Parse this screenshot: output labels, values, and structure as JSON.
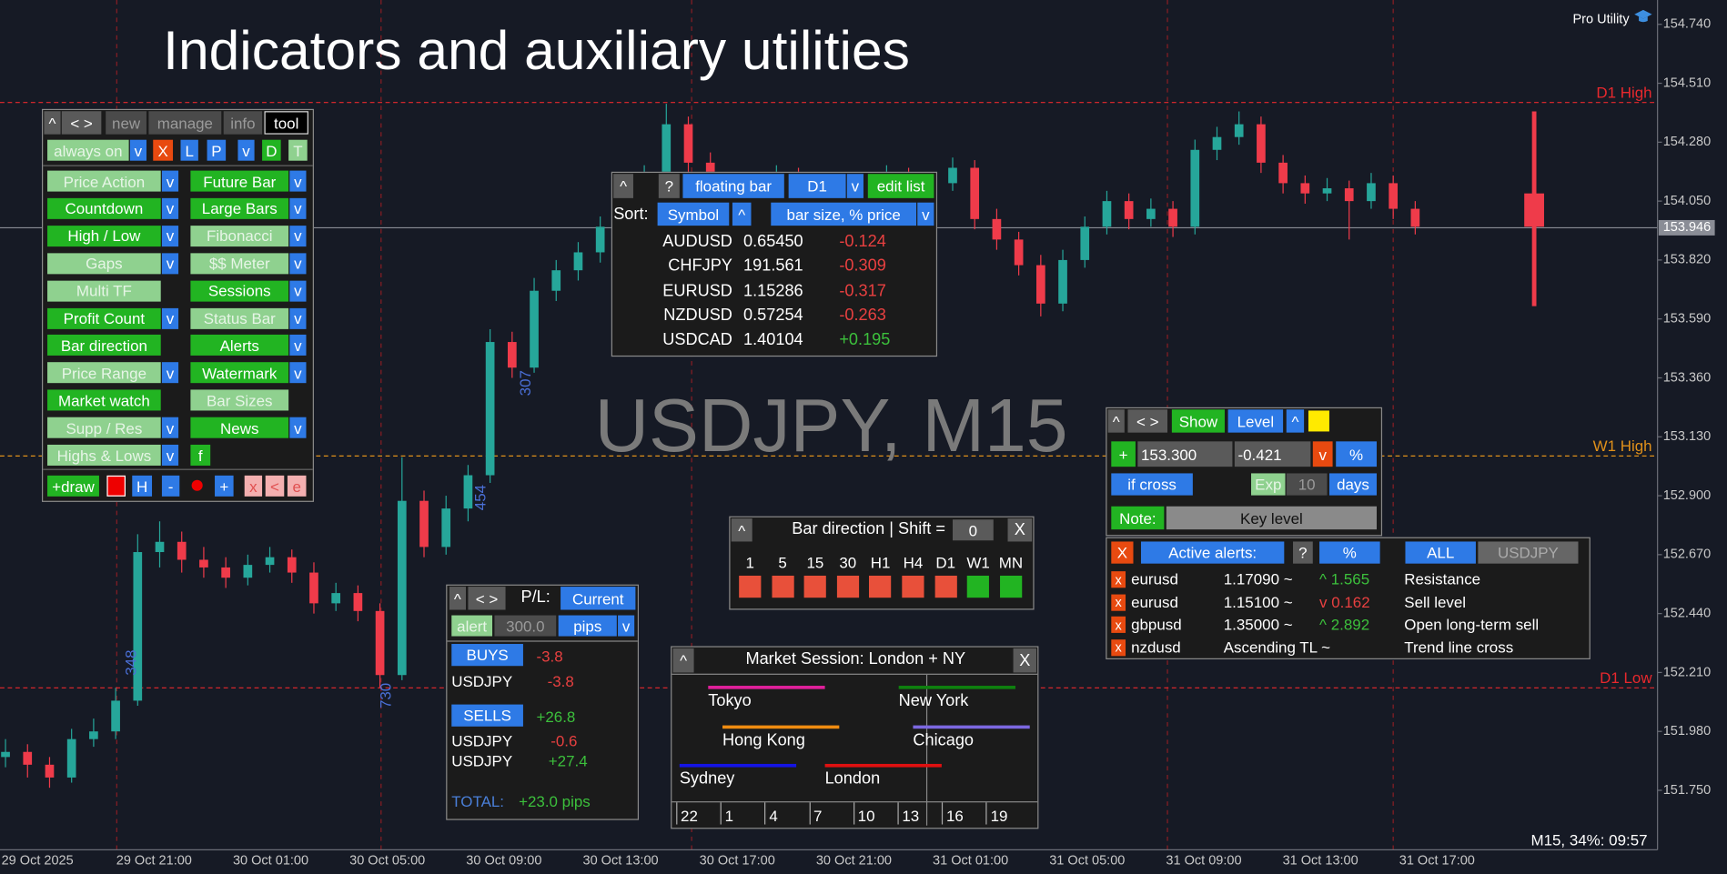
{
  "header": {
    "title": "Indicators and auxiliary utilities",
    "branding": "Pro Utility",
    "watermark": "USDJPY, M15",
    "status": "M15, 34%: 09:57"
  },
  "chart_data": {
    "type": "candlestick",
    "up_color": "#26a69a",
    "down_color": "#ef3b4a",
    "ylim": [
      151.518,
      154.835
    ],
    "yticks": [
      {
        "value": 154.74,
        "label": "154.740"
      },
      {
        "value": 154.51,
        "label": "154.510"
      },
      {
        "value": 154.28,
        "label": "154.280"
      },
      {
        "value": 154.05,
        "label": "154.050"
      },
      {
        "value": 153.82,
        "label": "153.820"
      },
      {
        "value": 153.59,
        "label": "153.590"
      },
      {
        "value": 153.36,
        "label": "153.360"
      },
      {
        "value": 153.13,
        "label": "153.130"
      },
      {
        "value": 152.9,
        "label": "152.900"
      },
      {
        "value": 152.67,
        "label": "152.670"
      },
      {
        "value": 152.44,
        "label": "152.440"
      },
      {
        "value": 152.21,
        "label": "152.210"
      },
      {
        "value": 151.98,
        "label": "151.980"
      },
      {
        "value": 151.75,
        "label": "151.750"
      }
    ],
    "x_labels": [
      "29 Oct 2025",
      "29 Oct 21:00",
      "30 Oct 01:00",
      "30 Oct 05:00",
      "30 Oct 09:00",
      "30 Oct 13:00",
      "30 Oct 17:00",
      "30 Oct 21:00",
      "31 Oct 01:00",
      "31 Oct 05:00",
      "31 Oct 09:00",
      "31 Oct 13:00",
      "31 Oct 17:00"
    ],
    "ohlc": [
      [
        151.88,
        151.95,
        151.84,
        151.9
      ],
      [
        151.9,
        151.93,
        151.8,
        151.85
      ],
      [
        151.85,
        151.88,
        151.76,
        151.8
      ],
      [
        151.8,
        151.99,
        151.78,
        151.95
      ],
      [
        151.95,
        152.03,
        151.92,
        151.98
      ],
      [
        151.98,
        152.15,
        151.95,
        152.1
      ],
      [
        152.1,
        152.75,
        152.08,
        152.68
      ],
      [
        152.68,
        152.8,
        152.62,
        152.72
      ],
      [
        152.72,
        152.76,
        152.6,
        152.65
      ],
      [
        152.65,
        152.7,
        152.58,
        152.62
      ],
      [
        152.62,
        152.66,
        152.54,
        152.58
      ],
      [
        152.58,
        152.67,
        152.55,
        152.63
      ],
      [
        152.63,
        152.7,
        152.6,
        152.66
      ],
      [
        152.66,
        152.69,
        152.56,
        152.6
      ],
      [
        152.6,
        152.64,
        152.44,
        152.48
      ],
      [
        152.48,
        152.56,
        152.45,
        152.52
      ],
      [
        152.52,
        152.55,
        152.41,
        152.45
      ],
      [
        152.45,
        152.48,
        152.15,
        152.2
      ],
      [
        152.2,
        153.05,
        152.18,
        152.88
      ],
      [
        152.88,
        152.92,
        152.66,
        152.7
      ],
      [
        152.7,
        152.9,
        152.67,
        152.85
      ],
      [
        152.85,
        153.02,
        152.8,
        152.98
      ],
      [
        152.98,
        153.55,
        152.95,
        153.5
      ],
      [
        153.5,
        153.54,
        153.36,
        153.4
      ],
      [
        153.4,
        153.75,
        153.38,
        153.7
      ],
      [
        153.7,
        153.82,
        153.66,
        153.78
      ],
      [
        153.78,
        153.89,
        153.74,
        153.85
      ],
      [
        153.85,
        153.99,
        153.81,
        153.95
      ],
      [
        153.95,
        154.09,
        153.92,
        154.05
      ],
      [
        154.05,
        154.19,
        154.02,
        154.15
      ],
      [
        154.15,
        154.43,
        154.12,
        154.35
      ],
      [
        154.35,
        154.38,
        154.16,
        154.2
      ],
      [
        154.2,
        154.24,
        154.06,
        154.1
      ],
      [
        154.1,
        154.16,
        154.07,
        154.12
      ],
      [
        154.12,
        154.15,
        154.04,
        154.08
      ],
      [
        154.08,
        154.19,
        154.05,
        154.15
      ],
      [
        154.15,
        154.18,
        154.06,
        154.1
      ],
      [
        154.1,
        154.13,
        154.01,
        154.05
      ],
      [
        154.05,
        154.16,
        154.02,
        154.12
      ],
      [
        154.12,
        154.15,
        154.06,
        154.1
      ],
      [
        154.1,
        154.19,
        154.07,
        154.15
      ],
      [
        154.15,
        154.18,
        154.04,
        154.08
      ],
      [
        154.08,
        154.16,
        154.05,
        154.12
      ],
      [
        154.12,
        154.22,
        154.09,
        154.18
      ],
      [
        154.18,
        154.21,
        153.94,
        153.98
      ],
      [
        153.98,
        154.02,
        153.86,
        153.9
      ],
      [
        153.9,
        153.93,
        153.76,
        153.8
      ],
      [
        153.8,
        153.84,
        153.6,
        153.65
      ],
      [
        153.65,
        153.86,
        153.62,
        153.82
      ],
      [
        153.82,
        153.99,
        153.79,
        153.95
      ],
      [
        153.95,
        154.09,
        153.92,
        154.05
      ],
      [
        154.05,
        154.08,
        153.94,
        153.98
      ],
      [
        153.98,
        154.06,
        153.95,
        154.02
      ],
      [
        154.02,
        154.05,
        153.91,
        153.95
      ],
      [
        153.95,
        154.29,
        153.92,
        154.25
      ],
      [
        154.25,
        154.34,
        154.21,
        154.3
      ],
      [
        154.3,
        154.4,
        154.27,
        154.35
      ],
      [
        154.35,
        154.38,
        154.16,
        154.2
      ],
      [
        154.2,
        154.23,
        154.08,
        154.12
      ],
      [
        154.12,
        154.15,
        154.04,
        154.08
      ],
      [
        154.08,
        154.14,
        154.05,
        154.1
      ],
      [
        154.1,
        154.13,
        153.9,
        154.05
      ],
      [
        154.05,
        154.16,
        154.02,
        154.12
      ],
      [
        154.12,
        154.15,
        153.98,
        154.02
      ],
      [
        154.02,
        154.05,
        153.92,
        153.95
      ]
    ],
    "floating_bar": [
      154.08,
      154.4,
      153.64,
      153.95
    ],
    "current_price": 153.946,
    "levels": [
      {
        "label": "D1 High",
        "value": 154.435,
        "color": "#e8282d"
      },
      {
        "label": "W1 High",
        "value": 153.055,
        "color": "#e0901a"
      },
      {
        "label": "D1 Low",
        "value": 152.15,
        "color": "#e8282d"
      }
    ],
    "swing_labels": [
      348,
      730,
      307,
      454
    ],
    "swing_color": "#4a6fd6"
  },
  "tool_panel": {
    "tabs": [
      "^",
      "< >",
      "new",
      "manage",
      "info",
      "tool"
    ],
    "toolbar": [
      "always on",
      "v",
      "X",
      "L",
      "P",
      "v",
      "D",
      "T"
    ],
    "left": [
      {
        "label": "Price Action",
        "on": false,
        "menu": "v"
      },
      {
        "label": "Countdown",
        "on": true,
        "menu": "v"
      },
      {
        "label": "High / Low",
        "on": true,
        "menu": "v"
      },
      {
        "label": "Gaps",
        "on": false,
        "menu": "v"
      },
      {
        "label": "Multi TF",
        "on": false
      },
      {
        "label": "Profit Count",
        "on": true,
        "menu": "v"
      },
      {
        "label": "Bar direction",
        "on": true
      },
      {
        "label": "Price Range",
        "on": false,
        "menu": "v"
      },
      {
        "label": "Market watch",
        "on": true
      },
      {
        "label": "Supp / Res",
        "on": false,
        "menu": "v"
      },
      {
        "label": "Highs & Lows",
        "on": false,
        "menu": "v"
      }
    ],
    "right": [
      {
        "label": "Future Bar",
        "on": true,
        "menu": "v"
      },
      {
        "label": "Large Bars",
        "on": true,
        "menu": "v"
      },
      {
        "label": "Fibonacci",
        "on": false,
        "menu": "v"
      },
      {
        "label": "$$ Meter",
        "on": false,
        "menu": "v"
      },
      {
        "label": "Sessions",
        "on": true,
        "menu": "v"
      },
      {
        "label": "Status Bar",
        "on": false,
        "menu": "v"
      },
      {
        "label": "Alerts",
        "on": true,
        "menu": "v"
      },
      {
        "label": "Watermark",
        "on": true,
        "menu": "v"
      },
      {
        "label": "Bar Sizes",
        "on": false
      },
      {
        "label": "News",
        "on": true,
        "menu": "v"
      },
      {
        "label": "f",
        "on": true
      }
    ],
    "footer": [
      "+draw",
      "H",
      "-",
      "+",
      "x",
      "<",
      "e"
    ]
  },
  "bar_list": {
    "header": [
      "^",
      "?",
      "floating bar",
      "D1",
      "v",
      "edit list"
    ],
    "sort": [
      "Sort:",
      "Symbol",
      "^",
      "bar size, % price",
      "v"
    ],
    "rows": [
      [
        "AUDUSD",
        "0.65450",
        "-0.124"
      ],
      [
        "CHFJPY",
        "191.561",
        "-0.309"
      ],
      [
        "EURUSD",
        "1.15286",
        "-0.317"
      ],
      [
        "NZDUSD",
        "0.57254",
        "-0.263"
      ],
      [
        "USDCAD",
        "1.40104",
        "+0.195"
      ]
    ]
  },
  "alert_panel": {
    "header": [
      "^",
      "< >",
      "Show",
      "Level",
      "^"
    ],
    "level_row": [
      "+",
      "153.300",
      "-0.421",
      "v",
      "%"
    ],
    "cross_row": [
      "if cross",
      "Exp",
      "10",
      "days"
    ],
    "note_row": [
      "Note:",
      "Key level"
    ],
    "list_header": [
      "X",
      "Active alerts:",
      "?",
      "%",
      "ALL",
      "USDJPY"
    ],
    "alerts": [
      [
        "x",
        "eurusd",
        "1.17090 ~",
        "^ 1.565",
        "Resistance"
      ],
      [
        "x",
        "eurusd",
        "1.15100 ~",
        "v 0.162",
        "Sell level"
      ],
      [
        "x",
        "gbpusd",
        "1.35000 ~",
        "^ 2.892",
        "Open long-term sell"
      ],
      [
        "x",
        "nzdusd",
        "Ascending TL ~",
        "",
        "Trend line cross"
      ]
    ]
  },
  "bar_direction": {
    "buttons": [
      "^",
      "X"
    ],
    "title": "Bar direction | Shift =",
    "shift": "0",
    "timeframes": [
      "1",
      "5",
      "15",
      "30",
      "H1",
      "H4",
      "D1",
      "W1",
      "MN"
    ],
    "colors": [
      "#e8503a",
      "#e8503a",
      "#e8503a",
      "#e8503a",
      "#e8503a",
      "#e8503a",
      "#e8503a",
      "#22b422",
      "#22b422"
    ]
  },
  "pl_panel": {
    "header": [
      "^",
      "< >",
      "P/L:",
      "Current"
    ],
    "alert_row": [
      "alert",
      "300.0",
      "pips",
      "v"
    ],
    "buys": [
      "BUYS",
      "-3.8"
    ],
    "buy_rows": [
      [
        "USDJPY",
        "-3.8"
      ]
    ],
    "sells": [
      "SELLS",
      "+26.8"
    ],
    "sell_rows": [
      [
        "USDJPY",
        "-0.6"
      ],
      [
        "USDJPY",
        "+27.4"
      ]
    ],
    "total": [
      "TOTAL:",
      "+23.0 pips"
    ]
  },
  "sessions": {
    "buttons": [
      "^",
      "X"
    ],
    "title": "Market Session: London + NY",
    "items": [
      {
        "name": "Tokyo",
        "color": "#e0209a"
      },
      {
        "name": "New York",
        "color": "#0f800f"
      },
      {
        "name": "Hong Kong",
        "color": "#f08c10"
      },
      {
        "name": "Chicago",
        "color": "#7c68e0"
      },
      {
        "name": "Sydney",
        "color": "#1414e6"
      },
      {
        "name": "London",
        "color": "#e01010"
      }
    ],
    "hours": [
      "22",
      "1",
      "4",
      "7",
      "10",
      "13",
      "16",
      "19"
    ]
  }
}
